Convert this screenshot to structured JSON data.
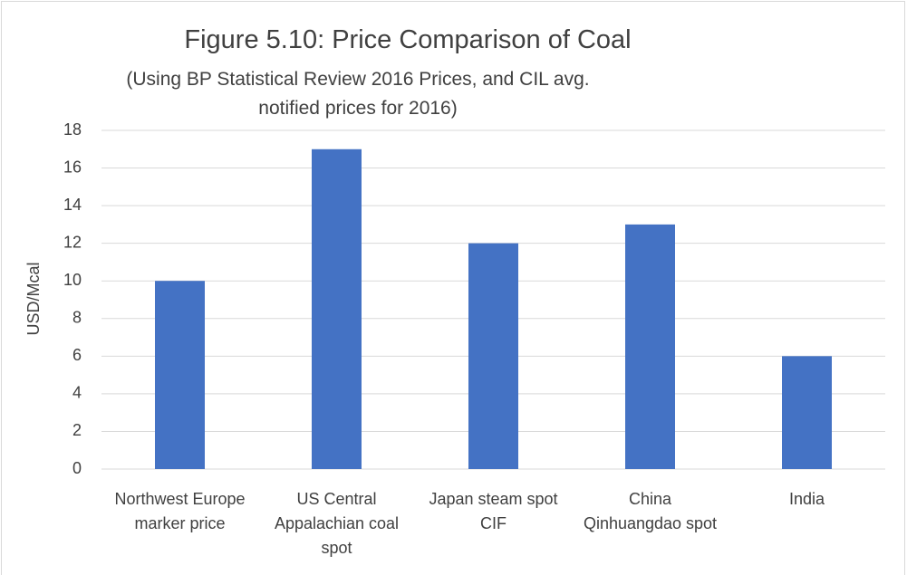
{
  "chart_data": {
    "type": "bar",
    "title": "Figure 5.10: Price Comparison of Coal",
    "subtitle": "(Using BP Statistical Review 2016 Prices, and CIL avg. notified prices for 2016)",
    "y_label": "USD/Mcal",
    "categories": [
      "Northwest Europe marker price",
      "US Central Appalachian coal spot",
      "Japan steam spot CIF",
      "China Qinhuangdao spot",
      "India"
    ],
    "values": [
      10,
      17,
      12,
      13,
      6
    ],
    "color": "#4472c4",
    "ylim": [
      0,
      18
    ],
    "yticks": [
      0,
      2,
      4,
      6,
      8,
      10,
      12,
      14,
      16,
      18
    ],
    "grid": true
  }
}
